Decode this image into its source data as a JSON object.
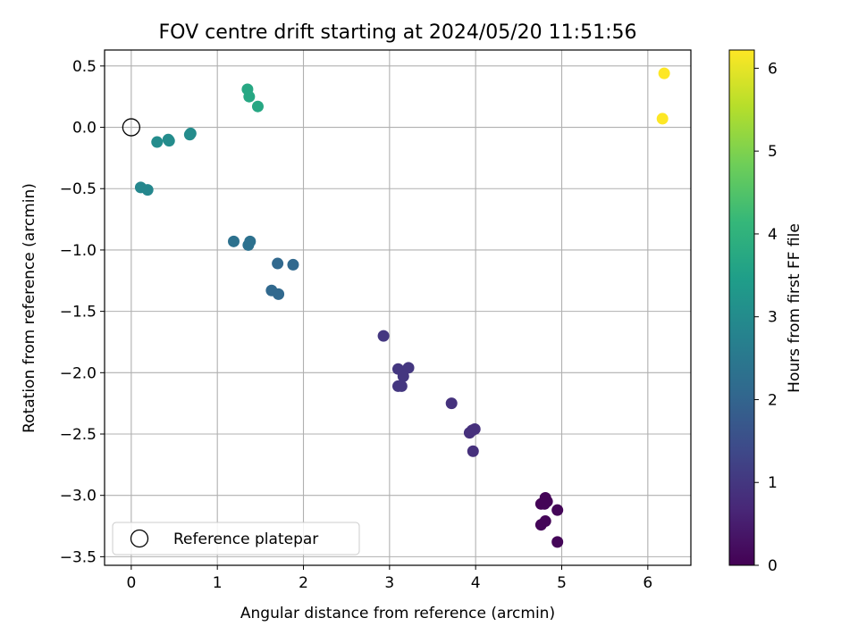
{
  "chart_data": {
    "type": "scatter",
    "title": "FOV centre drift starting at 2024/05/20 11:51:56",
    "xlabel": "Angular distance from reference (arcmin)",
    "ylabel": "Rotation from reference (arcmin)",
    "xlim": [
      -0.31,
      6.5
    ],
    "ylim": [
      -3.57,
      0.63
    ],
    "xticks": [
      0,
      1,
      2,
      3,
      4,
      5,
      6
    ],
    "xtick_labels": [
      "0",
      "1",
      "2",
      "3",
      "4",
      "5",
      "6"
    ],
    "yticks": [
      0.5,
      0.0,
      -0.5,
      -1.0,
      -1.5,
      -2.0,
      -2.5,
      -3.0,
      -3.5
    ],
    "ytick_labels": [
      "0.5",
      "0.0",
      "−0.5",
      "−1.0",
      "−1.5",
      "−2.0",
      "−2.5",
      "−3.0",
      "−3.5"
    ],
    "grid": true,
    "legend": {
      "position": "lower-left",
      "entries": [
        "Reference platepar"
      ]
    },
    "reference_point": {
      "x": 0,
      "y": 0,
      "label": "Reference platepar"
    },
    "colorbar": {
      "label": "Hours from first FF file",
      "min": 0,
      "max": 6.22,
      "ticks": [
        0,
        1,
        2,
        3,
        4,
        5,
        6
      ],
      "tick_labels": [
        "0",
        "1",
        "2",
        "3",
        "4",
        "5",
        "6"
      ],
      "colormap": [
        "#440154",
        "#482878",
        "#3e4989",
        "#31688e",
        "#26828e",
        "#1f9e89",
        "#35b779",
        "#6ece58",
        "#b5de2b",
        "#fde725"
      ]
    },
    "series": [
      {
        "points": [
          {
            "x": 4.76,
            "y": -3.07,
            "c": 0.05
          },
          {
            "x": 4.81,
            "y": -3.02,
            "c": 0.05
          },
          {
            "x": 4.83,
            "y": -3.05,
            "c": 0.06
          },
          {
            "x": 4.8,
            "y": -3.07,
            "c": 0.06
          },
          {
            "x": 4.76,
            "y": -3.24,
            "c": 0.07
          },
          {
            "x": 4.81,
            "y": -3.21,
            "c": 0.07
          },
          {
            "x": 4.95,
            "y": -3.12,
            "c": 0.08
          },
          {
            "x": 4.95,
            "y": -3.38,
            "c": 0.08
          },
          {
            "x": 3.93,
            "y": -2.49,
            "c": 0.85
          },
          {
            "x": 3.96,
            "y": -2.47,
            "c": 0.85
          },
          {
            "x": 3.99,
            "y": -2.46,
            "c": 0.85
          },
          {
            "x": 3.97,
            "y": -2.64,
            "c": 0.85
          },
          {
            "x": 3.72,
            "y": -2.25,
            "c": 0.9
          },
          {
            "x": 2.93,
            "y": -1.7,
            "c": 1.0
          },
          {
            "x": 3.1,
            "y": -1.97,
            "c": 1.0
          },
          {
            "x": 3.22,
            "y": -1.96,
            "c": 1.0
          },
          {
            "x": 3.16,
            "y": -2.03,
            "c": 1.0
          },
          {
            "x": 3.1,
            "y": -2.11,
            "c": 1.0
          },
          {
            "x": 3.14,
            "y": -2.11,
            "c": 1.0
          },
          {
            "x": 1.63,
            "y": -1.33,
            "c": 2.1
          },
          {
            "x": 1.71,
            "y": -1.36,
            "c": 2.1
          },
          {
            "x": 1.7,
            "y": -1.11,
            "c": 2.1
          },
          {
            "x": 1.88,
            "y": -1.12,
            "c": 2.1
          },
          {
            "x": 1.19,
            "y": -0.93,
            "c": 2.3
          },
          {
            "x": 1.36,
            "y": -0.96,
            "c": 2.3
          },
          {
            "x": 1.38,
            "y": -0.93,
            "c": 2.3
          },
          {
            "x": 0.11,
            "y": -0.49,
            "c": 2.9
          },
          {
            "x": 0.19,
            "y": -0.51,
            "c": 2.9
          },
          {
            "x": 0.3,
            "y": -0.12,
            "c": 3.0
          },
          {
            "x": 0.43,
            "y": -0.1,
            "c": 3.0
          },
          {
            "x": 0.44,
            "y": -0.11,
            "c": 3.0
          },
          {
            "x": 0.68,
            "y": -0.06,
            "c": 3.0
          },
          {
            "x": 0.69,
            "y": -0.05,
            "c": 3.0
          },
          {
            "x": 1.35,
            "y": 0.31,
            "c": 3.7
          },
          {
            "x": 1.37,
            "y": 0.25,
            "c": 3.7
          },
          {
            "x": 1.47,
            "y": 0.17,
            "c": 3.7
          },
          {
            "x": 6.17,
            "y": 0.07,
            "c": 6.22
          },
          {
            "x": 6.19,
            "y": 0.44,
            "c": 6.22
          }
        ]
      }
    ]
  }
}
